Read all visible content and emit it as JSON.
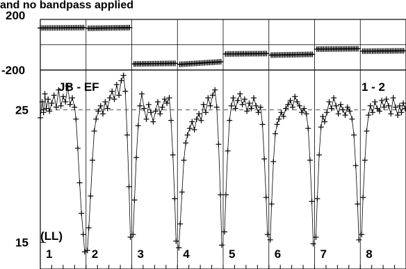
{
  "chart_data": {
    "type": "scatter",
    "title": "and no bandpass applied",
    "panels": [
      {
        "name": "phase",
        "ylim": [
          -200,
          200
        ],
        "yticks": [
          200,
          -200
        ],
        "ytick_labels": [
          "200",
          "-200"
        ],
        "hline": 0,
        "series": [
          {
            "scan": 1,
            "x_start": 1.0,
            "x_end": 1.95,
            "y_start": 132,
            "y_end": 135
          },
          {
            "scan": 2,
            "x_start": 2.05,
            "x_end": 2.95,
            "y_start": 130,
            "y_end": 135
          },
          {
            "scan": 3,
            "x_start": 3.05,
            "x_end": 3.95,
            "y_start": -152,
            "y_end": -147
          },
          {
            "scan": 4,
            "x_start": 4.05,
            "x_end": 4.95,
            "y_start": -155,
            "y_end": -135
          },
          {
            "scan": 5,
            "x_start": 5.05,
            "x_end": 5.95,
            "y_start": -73,
            "y_end": -70
          },
          {
            "scan": 6,
            "x_start": 6.05,
            "x_end": 6.95,
            "y_start": -82,
            "y_end": -76
          },
          {
            "scan": 7,
            "x_start": 7.05,
            "x_end": 7.95,
            "y_start": -35,
            "y_end": -32
          },
          {
            "scan": 8,
            "x_start": 8.05,
            "x_end": 8.95,
            "y_start": -51,
            "y_end": -48
          }
        ]
      },
      {
        "name": "amplitude",
        "ylim": [
          13,
          28
        ],
        "yticks": [
          25,
          15
        ],
        "ytick_labels": [
          "25",
          "15"
        ],
        "reference_line": 25,
        "annotations": {
          "baseline": "JB - EF",
          "pol": "(LL)",
          "corner": "1 - 2"
        },
        "series": [
          {
            "scan": 1,
            "x": [
              1.0,
              1.04,
              1.07,
              1.1,
              1.13,
              1.17,
              1.2,
              1.25,
              1.3,
              1.35,
              1.4,
              1.45,
              1.5,
              1.55,
              1.6,
              1.65,
              1.7,
              1.75,
              1.78,
              1.82,
              1.86,
              1.9,
              1.94,
              1.97
            ],
            "y": [
              24.4,
              25.6,
              24.8,
              26.2,
              25.1,
              25.8,
              24.9,
              25.5,
              26.1,
              25.2,
              26.5,
              25.3,
              26.0,
              25.6,
              26.8,
              25.4,
              25.9,
              25.2,
              24.3,
              22.1,
              19.5,
              17.2,
              15.6,
              14.3
            ]
          },
          {
            "scan": 2,
            "x": [
              2.03,
              2.06,
              2.1,
              2.14,
              2.18,
              2.22,
              2.27,
              2.32,
              2.37,
              2.42,
              2.47,
              2.52,
              2.57,
              2.62,
              2.67,
              2.72,
              2.77,
              2.82,
              2.86,
              2.9,
              2.94,
              2.97
            ],
            "y": [
              14.4,
              16.1,
              18.5,
              21.2,
              23.4,
              24.3,
              24.9,
              25.3,
              24.7,
              25.6,
              25.1,
              25.9,
              26.4,
              25.8,
              26.9,
              26.1,
              27.2,
              27.6,
              26.4,
              23.1,
              19.2,
              15.4
            ]
          },
          {
            "scan": 3,
            "x": [
              3.03,
              3.06,
              3.1,
              3.14,
              3.18,
              3.22,
              3.27,
              3.32,
              3.37,
              3.42,
              3.47,
              3.52,
              3.57,
              3.62,
              3.67,
              3.72,
              3.77,
              3.82,
              3.86,
              3.9,
              3.94,
              3.97
            ],
            "y": [
              15.6,
              18.2,
              21.4,
              23.8,
              25.3,
              26.2,
              25.1,
              24.3,
              25.4,
              24.8,
              24.1,
              24.9,
              25.6,
              24.7,
              25.2,
              25.8,
              25.5,
              25.9,
              24.2,
              21.6,
              18.3,
              15.1
            ]
          },
          {
            "scan": 4,
            "x": [
              4.03,
              4.06,
              4.1,
              4.14,
              4.18,
              4.22,
              4.27,
              4.32,
              4.37,
              4.42,
              4.47,
              4.52,
              4.57,
              4.62,
              4.67,
              4.72,
              4.77,
              4.82,
              4.86,
              4.9,
              4.94,
              4.97
            ],
            "y": [
              14.6,
              16.4,
              18.8,
              21.2,
              22.5,
              23.1,
              23.6,
              24.1,
              23.5,
              24.3,
              24.7,
              24.2,
              25.4,
              24.8,
              25.9,
              25.3,
              26.1,
              26.5,
              25.2,
              22.4,
              18.6,
              14.8
            ]
          },
          {
            "scan": 5,
            "x": [
              5.03,
              5.06,
              5.1,
              5.14,
              5.18,
              5.22,
              5.27,
              5.32,
              5.37,
              5.42,
              5.47,
              5.52,
              5.57,
              5.62,
              5.67,
              5.72,
              5.77,
              5.82,
              5.86,
              5.9,
              5.94,
              5.97
            ],
            "y": [
              15.8,
              18.6,
              21.9,
              24.2,
              25.3,
              25.9,
              25.1,
              25.7,
              26.2,
              25.4,
              25.8,
              24.9,
              25.5,
              25.1,
              25.9,
              25.3,
              24.8,
              25.2,
              23.9,
              21.3,
              18.4,
              15.6
            ]
          },
          {
            "scan": 6,
            "x": [
              6.03,
              6.06,
              6.1,
              6.14,
              6.18,
              6.22,
              6.27,
              6.32,
              6.37,
              6.42,
              6.47,
              6.52,
              6.57,
              6.62,
              6.67,
              6.72,
              6.77,
              6.82,
              6.86,
              6.9,
              6.94,
              6.97
            ],
            "y": [
              15.2,
              17.9,
              21.1,
              23.2,
              23.9,
              24.3,
              24.8,
              24.5,
              25.1,
              25.4,
              25.7,
              25.2,
              26.0,
              25.6,
              25.3,
              24.8,
              25.1,
              24.7,
              23.6,
              21.2,
              18.1,
              14.9
            ]
          },
          {
            "scan": 7,
            "x": [
              7.03,
              7.06,
              7.1,
              7.14,
              7.18,
              7.22,
              7.27,
              7.32,
              7.37,
              7.42,
              7.47,
              7.52,
              7.57,
              7.62,
              7.67,
              7.72,
              7.77,
              7.82,
              7.86,
              7.9,
              7.94,
              7.97
            ],
            "y": [
              15.4,
              18.3,
              21.6,
              23.7,
              24.5,
              24.1,
              24.8,
              25.6,
              25.1,
              25.9,
              25.3,
              24.7,
              25.4,
              25.0,
              24.6,
              25.2,
              24.9,
              24.3,
              23.1,
              20.8,
              17.9,
              15.2
            ]
          },
          {
            "scan": 8,
            "x": [
              8.03,
              8.06,
              8.1,
              8.14,
              8.18,
              8.22,
              8.27,
              8.32,
              8.37,
              8.42,
              8.47,
              8.52,
              8.57,
              8.62,
              8.67,
              8.72,
              8.77,
              8.82,
              8.86,
              8.9,
              8.94,
              8.98
            ],
            "y": [
              15.6,
              18.4,
              21.2,
              23.4,
              24.6,
              25.3,
              24.8,
              25.6,
              25.1,
              24.9,
              25.7,
              25.2,
              25.8,
              25.3,
              24.7,
              25.9,
              25.2,
              24.6,
              25.3,
              24.8,
              25.5,
              25.1
            ]
          }
        ]
      }
    ],
    "x_panel_labels": [
      "1",
      "2",
      "3",
      "4",
      "5",
      "6",
      "7",
      "8"
    ],
    "xlim": [
      1.0,
      9.0
    ],
    "grid": true,
    "marker": "plus",
    "color": "#000000",
    "reference_color": "#808080"
  }
}
